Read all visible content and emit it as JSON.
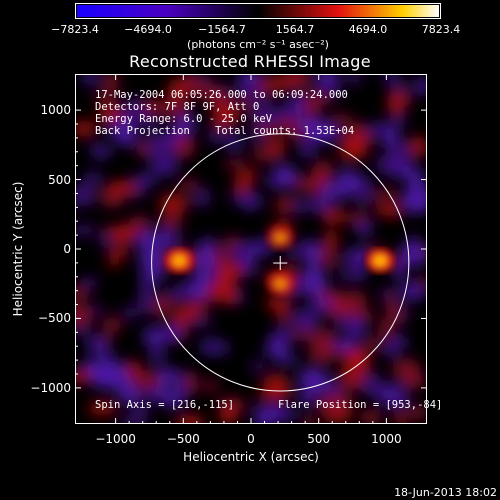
{
  "colorbar": {
    "ticks": [
      "−7823.4",
      "−4694.0",
      "−1564.7",
      "1564.7",
      "4694.0",
      "7823.4"
    ],
    "tick_values": [
      -7823.4,
      -4694.0,
      -1564.7,
      1564.7,
      4694.0,
      7823.4
    ],
    "unit": "(photons cm⁻² s⁻¹ asec⁻²)"
  },
  "title": "Reconstructed RHESSI Image",
  "info": {
    "line1": "17-May-2004 06:05:26.000 to 06:09:24.000",
    "line2": "Detectors: 7F 8F 9F, Att 0",
    "line3": "Energy Range: 6.0 - 25.0 keV",
    "line4": "Back Projection    Total counts: 1.53E+04",
    "spin_axis": "Spin Axis = [216,-115]",
    "flare_position": "Flare Position = [953,-84]"
  },
  "footer": {
    "date": "18-Jun-2013 18:02"
  },
  "chart_data": {
    "type": "heatmap",
    "title": "Reconstructed RHESSI Image",
    "xlabel": "Heliocentric X (arcsec)",
    "ylabel": "Heliocentric Y (arcsec)",
    "xlim": [
      -1300,
      1300
    ],
    "ylim": [
      -1260,
      1260
    ],
    "xticks": [
      -1000,
      -500,
      0,
      500,
      1000
    ],
    "yticks": [
      -1000,
      -500,
      0,
      500,
      1000
    ],
    "xtick_labels": [
      "−1000",
      "−500",
      "0",
      "500",
      "1000"
    ],
    "ytick_labels": [
      "−1000",
      "−500",
      "0",
      "500",
      "1000"
    ],
    "color_range": [
      -7823.4,
      7823.4
    ],
    "solar_limb_radius": 950,
    "spin_axis": [
      216,
      -115
    ],
    "flare_position": [
      953,
      -84
    ],
    "bright_sources": [
      {
        "x": 953,
        "y": -84,
        "intensity": 1.0
      },
      {
        "x": -530,
        "y": -84,
        "intensity": 0.95
      },
      {
        "x": 216,
        "y": 80,
        "intensity": 0.55
      },
      {
        "x": 216,
        "y": -250,
        "intensity": 0.6
      }
    ]
  },
  "colors": {
    "background": "#000000",
    "neg": "#1a00ff",
    "mid": "#000000",
    "pos_red": "#e01010",
    "pos_yellow": "#ffd000",
    "pos_white": "#ffffff"
  }
}
